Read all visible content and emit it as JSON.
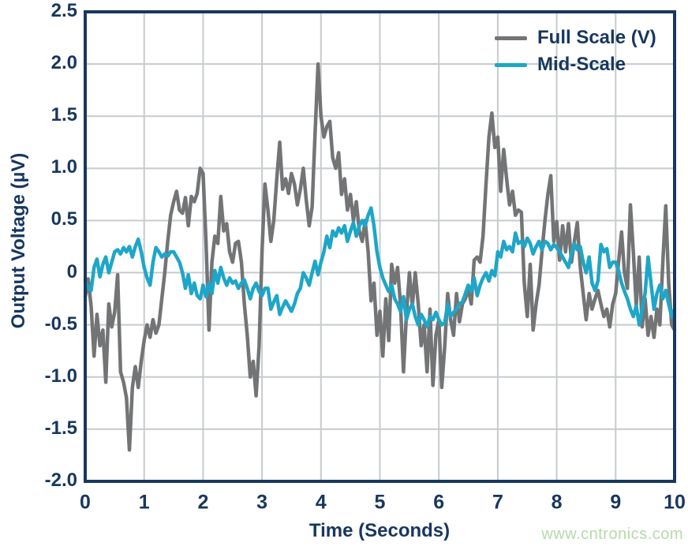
{
  "colors": {
    "axis_and_text": "#17375e",
    "gridline": "#c7cbce",
    "background": "#ffffff",
    "full_scale_trace": "#737476",
    "mid_scale_trace": "#1ea6c8",
    "watermark": "#b5daab"
  },
  "watermark": {
    "text": "www.cntronics.com"
  },
  "chart_data": {
    "type": "line",
    "title": "",
    "xlabel": "Time (Seconds)",
    "ylabel": "Output Voltage (µV)",
    "xlim": [
      0,
      10
    ],
    "ylim": [
      -2.0,
      2.5
    ],
    "grid": true,
    "legend_position": "top-right-inside",
    "x_ticks": [
      {
        "v": 0,
        "label": "0"
      },
      {
        "v": 1,
        "label": "1"
      },
      {
        "v": 2,
        "label": "2"
      },
      {
        "v": 3,
        "label": "3"
      },
      {
        "v": 4,
        "label": "4"
      },
      {
        "v": 5,
        "label": "5"
      },
      {
        "v": 6,
        "label": "6"
      },
      {
        "v": 7,
        "label": "7"
      },
      {
        "v": 8,
        "label": "8"
      },
      {
        "v": 9,
        "label": "9"
      },
      {
        "v": 10,
        "label": "10"
      }
    ],
    "y_ticks": [
      {
        "v": 2.5,
        "label": "2.5"
      },
      {
        "v": 2.0,
        "label": "2.0"
      },
      {
        "v": 1.5,
        "label": "1.5"
      },
      {
        "v": 1.0,
        "label": "1.0"
      },
      {
        "v": 0.5,
        "label": "0.5"
      },
      {
        "v": 0,
        "label": "0"
      },
      {
        "v": -0.5,
        "label": "-0.5"
      },
      {
        "v": -1.0,
        "label": "-1.0"
      },
      {
        "v": -1.5,
        "label": "-1.5"
      },
      {
        "v": -2.0,
        "label": "-2.0"
      }
    ],
    "x_start": 0,
    "x_step": 0.05,
    "series": [
      {
        "name": "Full Scale (V)",
        "color": "#737476",
        "values": [
          -0.23,
          -0.06,
          -0.32,
          -0.8,
          -0.4,
          -0.7,
          -0.55,
          -1.05,
          -0.3,
          -0.52,
          -0.38,
          -0.02,
          -0.95,
          -1.05,
          -1.2,
          -1.7,
          -1.1,
          -0.9,
          -1.1,
          -0.85,
          -0.65,
          -0.5,
          -0.62,
          -0.45,
          -0.58,
          -0.5,
          -0.25,
          0.0,
          0.3,
          0.55,
          0.68,
          0.78,
          0.6,
          0.57,
          0.72,
          0.45,
          0.73,
          0.68,
          0.76,
          1.0,
          0.95,
          0.3,
          -0.55,
          0.1,
          0.35,
          0.28,
          0.73,
          0.4,
          0.47,
          0.2,
          0.1,
          0.28,
          0.3,
          0.1,
          -0.3,
          -0.6,
          -1.0,
          -0.85,
          -1.18,
          -0.7,
          0.2,
          0.85,
          0.6,
          0.3,
          0.5,
          0.9,
          1.25,
          0.8,
          0.9,
          0.76,
          0.95,
          0.85,
          0.65,
          0.8,
          1.0,
          0.7,
          0.45,
          0.63,
          1.33,
          2.0,
          1.5,
          1.3,
          1.4,
          1.45,
          1.1,
          1.0,
          1.15,
          0.75,
          0.9,
          0.6,
          0.75,
          0.5,
          0.68,
          0.4,
          0.3,
          0.5,
          0.2,
          -0.27,
          -0.1,
          -0.6,
          -0.37,
          -0.8,
          -0.25,
          -0.65,
          0.08,
          -0.1,
          0.05,
          -0.3,
          -0.95,
          -0.4,
          0.0,
          -0.32,
          0.0,
          -0.3,
          -0.7,
          -0.5,
          -0.95,
          -0.35,
          -1.08,
          -0.6,
          -0.45,
          -1.1,
          -0.7,
          -0.2,
          -0.45,
          -0.6,
          -0.2,
          -0.47,
          -0.3,
          -0.25,
          -0.15,
          -0.3,
          0.12,
          0.15,
          0.1,
          0.35,
          0.85,
          1.3,
          1.53,
          1.2,
          1.3,
          0.78,
          1.18,
          0.9,
          0.65,
          0.78,
          0.55,
          0.6,
          0.58,
          -0.1,
          -0.42,
          0.08,
          -0.55,
          -0.3,
          -0.12,
          0.2,
          0.5,
          0.75,
          0.93,
          0.3,
          0.49,
          0.12,
          0.45,
          0.2,
          0.47,
          0.1,
          0.3,
          0.48,
          0.05,
          -0.2,
          -0.45,
          -0.2,
          -0.35,
          -0.25,
          -0.17,
          -0.3,
          -0.42,
          -0.35,
          -0.52,
          -0.3,
          -0.2,
          0.1,
          0.39,
          0.0,
          -0.15,
          0.65,
          0.2,
          -0.32,
          0.15,
          -0.52,
          -0.25,
          -0.6,
          -0.42,
          -0.62,
          -0.35,
          -0.5,
          0.1,
          0.64,
          -0.1,
          -0.5,
          -0.55
        ]
      },
      {
        "name": "Mid-Scale",
        "color": "#1ea6c8",
        "values": [
          -0.08,
          -0.15,
          -0.17,
          0.05,
          0.13,
          -0.04,
          0.08,
          0.15,
          0.0,
          0.1,
          0.2,
          0.22,
          0.18,
          0.24,
          0.2,
          0.25,
          0.15,
          0.25,
          0.32,
          0.2,
          0.05,
          -0.05,
          -0.12,
          0.1,
          0.24,
          0.2,
          0.15,
          0.18,
          0.16,
          0.2,
          0.2,
          0.15,
          0.1,
          0.0,
          -0.15,
          -0.02,
          -0.2,
          -0.1,
          -0.22,
          -0.25,
          -0.12,
          -0.23,
          -0.1,
          -0.2,
          0.02,
          -0.1,
          0.05,
          -0.05,
          -0.12,
          -0.05,
          -0.1,
          -0.08,
          -0.15,
          -0.1,
          -0.07,
          -0.15,
          -0.25,
          -0.15,
          -0.1,
          -0.18,
          -0.22,
          -0.15,
          -0.15,
          -0.35,
          -0.28,
          -0.22,
          -0.4,
          -0.33,
          -0.27,
          -0.32,
          -0.37,
          -0.3,
          -0.2,
          -0.15,
          0.0,
          -0.05,
          -0.12,
          0.0,
          0.11,
          -0.02,
          0.1,
          0.2,
          0.35,
          0.24,
          0.4,
          0.35,
          0.43,
          0.38,
          0.45,
          0.3,
          0.4,
          0.48,
          0.35,
          0.45,
          0.5,
          0.45,
          0.55,
          0.62,
          0.45,
          0.2,
          0.05,
          -0.05,
          -0.12,
          -0.18,
          -0.12,
          -0.25,
          -0.3,
          -0.37,
          -0.23,
          -0.45,
          -0.35,
          -0.3,
          -0.42,
          -0.5,
          -0.4,
          -0.45,
          -0.52,
          -0.42,
          -0.45,
          -0.38,
          -0.45,
          -0.5,
          -0.48,
          -0.3,
          -0.42,
          -0.38,
          -0.35,
          -0.3,
          -0.28,
          -0.2,
          -0.12,
          -0.18,
          -0.05,
          -0.22,
          -0.12,
          -0.05,
          0.0,
          -0.08,
          0.02,
          -0.03,
          0.2,
          0.15,
          0.3,
          0.22,
          0.25,
          0.2,
          0.38,
          0.28,
          0.3,
          0.25,
          0.33,
          0.28,
          0.18,
          0.25,
          0.3,
          0.22,
          0.3,
          0.28,
          0.22,
          0.27,
          0.24,
          0.2,
          0.15,
          0.1,
          0.05,
          0.18,
          0.28,
          0.22,
          0.25,
          0.1,
          0.0,
          0.15,
          -0.1,
          -0.17,
          -0.08,
          0.27,
          0.2,
          0.23,
          0.05,
          0.1,
          0.1,
          0.02,
          -0.1,
          -0.18,
          -0.25,
          -0.35,
          -0.42,
          -0.32,
          -0.5,
          -0.35,
          -0.2,
          0.15,
          -0.1,
          -0.35,
          -0.2,
          -0.12,
          -0.25,
          -0.17,
          -0.3,
          -0.42,
          -0.35
        ]
      }
    ]
  }
}
